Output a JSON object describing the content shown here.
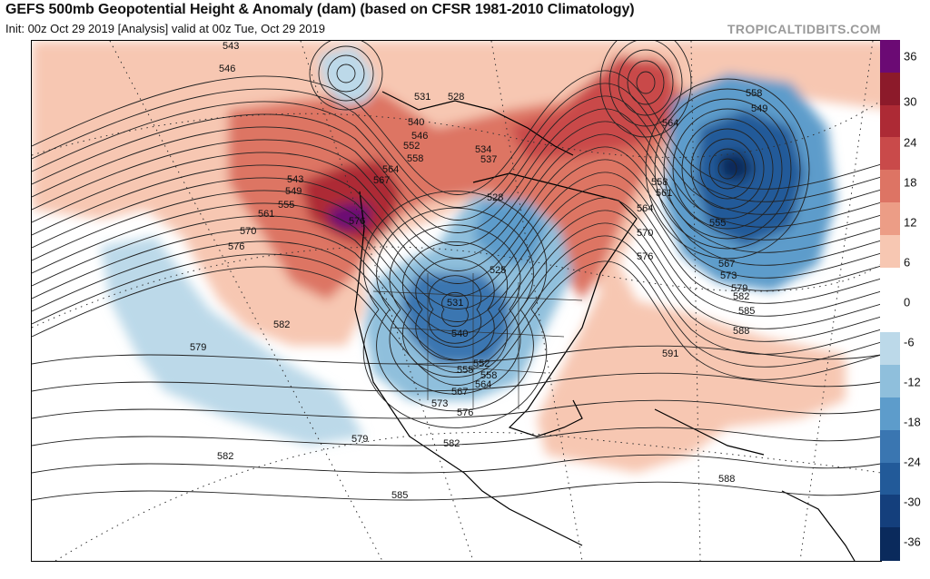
{
  "header": {
    "title": "GEFS 500mb Geopotential Height & Anomaly (dam) (based on CFSR 1981-2010 Climatology)",
    "subtitle": "Init: 00z Oct 29 2019   [Analysis]   valid at 00z Tue, Oct 29 2019",
    "brand": "TROPICALTIDBITS.COM"
  },
  "colorbar": {
    "labels": [
      "36",
      "30",
      "24",
      "18",
      "12",
      "6",
      "0",
      "-6",
      "-12",
      "-18",
      "-24",
      "-30",
      "-36"
    ],
    "colors": [
      "#6b0a74",
      "#8c1a2a",
      "#ad2a35",
      "#c94a4a",
      "#dd7464",
      "#ec9d86",
      "#f7c7b2",
      "#ffffff",
      "#ffffff",
      "#bcd9e9",
      "#8fbfdc",
      "#5d9ccb",
      "#3a76b1",
      "#225a99",
      "#143f7c",
      "#0a2a5c"
    ]
  },
  "contour_labels": [
    "543",
    "546",
    "543",
    "549",
    "555",
    "561",
    "570",
    "576",
    "582",
    "579",
    "582",
    "585",
    "582",
    "579",
    "531",
    "528",
    "540",
    "546",
    "552",
    "558",
    "564",
    "567",
    "576",
    "534",
    "537",
    "528",
    "525",
    "531",
    "540",
    "552",
    "555",
    "558",
    "564",
    "567",
    "573",
    "576",
    "558",
    "549",
    "564",
    "558",
    "561",
    "564",
    "570",
    "576",
    "555",
    "567",
    "573",
    "579",
    "582",
    "585",
    "588",
    "591",
    "588"
  ],
  "colors": {
    "anomaly_pos_strong": "#8c1a2a",
    "anomaly_pos": "#dd7464",
    "anomaly_pos_light": "#f7c7b2",
    "anomaly_neg_light": "#bcd9e9",
    "anomaly_neg": "#5d9ccb",
    "anomaly_neg_strong": "#143f7c"
  }
}
